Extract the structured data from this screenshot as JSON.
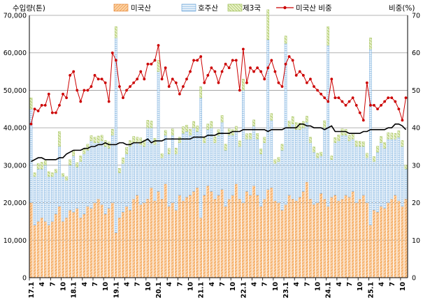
{
  "chart_data": {
    "type": "bar",
    "ylabel_left": "수입량(톤)",
    "ylabel_right": "비중(%)",
    "ylim_left": [
      0,
      70000
    ],
    "yticks_left": [
      "0",
      "10,000",
      "20,000",
      "30,000",
      "40,000",
      "50,000",
      "60,000",
      "70,000"
    ],
    "ylim_right": [
      0,
      70
    ],
    "yticks_right": [
      "0",
      "10",
      "20",
      "30",
      "40",
      "50",
      "60",
      "70"
    ],
    "gridlines": true,
    "legend_position": "top",
    "x_tick_labels": [
      {
        "i": 0,
        "t": "17.1"
      },
      {
        "i": 3,
        "t": "4"
      },
      {
        "i": 6,
        "t": "7"
      },
      {
        "i": 9,
        "t": "10"
      },
      {
        "i": 12,
        "t": "18.1"
      },
      {
        "i": 15,
        "t": "4"
      },
      {
        "i": 18,
        "t": "7"
      },
      {
        "i": 21,
        "t": "10"
      },
      {
        "i": 24,
        "t": "19.1"
      },
      {
        "i": 27,
        "t": "4"
      },
      {
        "i": 30,
        "t": "7"
      },
      {
        "i": 33,
        "t": "10"
      },
      {
        "i": 36,
        "t": "20.1"
      },
      {
        "i": 39,
        "t": "4"
      },
      {
        "i": 42,
        "t": "7"
      },
      {
        "i": 45,
        "t": "10"
      },
      {
        "i": 48,
        "t": "21.1"
      },
      {
        "i": 51,
        "t": "4"
      },
      {
        "i": 54,
        "t": "7"
      },
      {
        "i": 57,
        "t": "10"
      },
      {
        "i": 60,
        "t": "22.1"
      },
      {
        "i": 63,
        "t": "4"
      },
      {
        "i": 66,
        "t": "7"
      },
      {
        "i": 69,
        "t": "10"
      },
      {
        "i": 72,
        "t": "23.1"
      },
      {
        "i": 75,
        "t": "4"
      },
      {
        "i": 78,
        "t": "7"
      },
      {
        "i": 81,
        "t": "10"
      },
      {
        "i": 84,
        "t": "24.1"
      },
      {
        "i": 87,
        "t": "4"
      },
      {
        "i": 90,
        "t": "7"
      },
      {
        "i": 93,
        "t": "10"
      },
      {
        "i": 96,
        "t": "25.1"
      },
      {
        "i": 99,
        "t": "4"
      },
      {
        "i": 102,
        "t": "7"
      },
      {
        "i": 105,
        "t": "10"
      }
    ],
    "colors": {
      "us_fill": "#f4a460",
      "us_stroke": "#e07820",
      "au_fill": "#cfe3f3",
      "au_stroke": "#5b9bd5",
      "third_fill": "#d9e8a8",
      "third_stroke": "#8db33a",
      "share_line": "#cc0000",
      "trend_line": "#000000"
    },
    "series": [
      {
        "name": "미국산",
        "axis": "left",
        "kind": "stacked-bar",
        "values": [
          20000,
          14000,
          15000,
          16000,
          15000,
          14000,
          15000,
          17000,
          19000,
          15000,
          16000,
          18000,
          17500,
          18500,
          16000,
          17000,
          19000,
          18500,
          20000,
          21000,
          19500,
          17000,
          18500,
          20000,
          12000,
          16000,
          17500,
          19000,
          18000,
          21000,
          22000,
          19500,
          20000,
          21000,
          24000,
          20500,
          23000,
          21000,
          25000,
          19000,
          20000,
          18000,
          22000,
          20500,
          21500,
          22000,
          23000,
          24000,
          16000,
          22000,
          24500,
          23000,
          21000,
          22000,
          23500,
          19000,
          21000,
          22000,
          25000,
          21000,
          20000,
          23000,
          22000,
          24500,
          22000,
          19000,
          21000,
          23500,
          24000,
          20500,
          20000,
          18000,
          19500,
          22000,
          21000,
          20500,
          21500,
          23000,
          25500,
          21000,
          19500,
          20000,
          22500,
          21000,
          19000,
          21500,
          22000,
          20500,
          21000,
          22000,
          21500,
          23000,
          20000,
          21000,
          22000,
          20000,
          14000,
          18000,
          17500,
          19000,
          18500,
          20000,
          21000,
          22000,
          20500,
          19000,
          21000
        ],
        "approx": true
      },
      {
        "name": "호주산",
        "axis": "left",
        "kind": "stacked-bar",
        "values": [
          25000,
          13000,
          14000,
          13000,
          15000,
          13000,
          12000,
          11000,
          16000,
          12000,
          10000,
          12000,
          15000,
          11000,
          15000,
          16000,
          15000,
          18000,
          16000,
          15000,
          17000,
          18000,
          16000,
          18000,
          52000,
          12000,
          13000,
          14000,
          17000,
          15000,
          14000,
          16000,
          15000,
          19000,
          16000,
          15000,
          32000,
          11000,
          13000,
          14000,
          18000,
          15000,
          14000,
          18000,
          17500,
          16000,
          17000,
          15000,
          32000,
          14000,
          15000,
          17000,
          15000,
          16000,
          18000,
          15000,
          17000,
          16000,
          14000,
          14000,
          30000,
          14000,
          15000,
          16000,
          15000,
          14000,
          15000,
          40000,
          18000,
          10000,
          11000,
          16000,
          43000,
          18000,
          20000,
          19000,
          18000,
          17000,
          16000,
          15000,
          14000,
          12000,
          10000,
          19000,
          43000,
          10000,
          14000,
          16000,
          17000,
          16000,
          15000,
          14000,
          15000,
          14000,
          13000,
          12000,
          47000,
          13000,
          16000,
          17000,
          16000,
          17000,
          16000,
          15000,
          17000,
          16000,
          8000
        ],
        "approx": true
      },
      {
        "name": "제3국",
        "axis": "left",
        "kind": "stacked-bar",
        "values": [
          3000,
          1000,
          1500,
          1800,
          1200,
          1300,
          1000,
          900,
          4000,
          800,
          1000,
          1500,
          1500,
          1200,
          1500,
          1300,
          1600,
          1400,
          1500,
          1800,
          1500,
          1600,
          1700,
          1600,
          3000,
          1200,
          1500,
          1800,
          1600,
          1700,
          1500,
          1800,
          1700,
          2000,
          1800,
          1700,
          3000,
          1100,
          1300,
          1500,
          1700,
          1600,
          1500,
          1800,
          1700,
          1600,
          1700,
          1500,
          3000,
          1300,
          1500,
          1700,
          1600,
          1500,
          1800,
          1600,
          1700,
          1500,
          1400,
          1500,
          3000,
          1400,
          1500,
          1600,
          1500,
          1400,
          1500,
          8000,
          1800,
          1000,
          1100,
          1600,
          2000,
          1800,
          2000,
          1900,
          1800,
          1700,
          1600,
          1500,
          1400,
          1200,
          1000,
          1900,
          5000,
          1000,
          1400,
          1600,
          1700,
          1600,
          1500,
          1400,
          1500,
          1400,
          1300,
          1200,
          3000,
          1300,
          1600,
          1700,
          1600,
          1700,
          1600,
          1500,
          1700,
          1600,
          1000
        ],
        "approx": true
      },
      {
        "name": "미국산 비중",
        "axis": "right",
        "kind": "line-markers",
        "values": [
          41,
          45,
          44.5,
          46,
          46,
          49,
          44,
          44,
          46,
          49,
          48,
          54,
          55,
          50,
          47,
          50,
          50,
          51,
          54,
          53,
          53,
          52,
          47,
          60,
          58,
          51,
          48,
          50,
          51,
          52,
          53,
          55,
          53,
          57,
          57,
          58,
          62,
          53,
          56,
          51,
          53,
          52,
          49,
          51,
          53,
          55,
          58,
          58,
          59,
          52,
          54,
          56,
          55,
          52,
          55,
          57,
          56,
          58,
          58,
          50,
          61,
          52,
          56,
          55,
          56,
          55,
          53,
          56,
          58,
          55,
          52,
          51,
          57,
          59,
          58,
          54,
          55,
          54,
          52,
          53,
          51,
          50,
          49,
          48,
          47,
          53,
          48,
          48,
          47,
          46,
          47,
          48,
          46,
          44,
          42,
          52,
          46,
          46,
          45,
          46,
          47,
          48,
          48,
          47,
          45,
          42,
          48
        ],
        "approx": true
      },
      {
        "name": "",
        "axis": "right",
        "kind": "line",
        "values": [
          31,
          31.5,
          32,
          32,
          31.5,
          31.5,
          31.5,
          31.5,
          32,
          32,
          33,
          33.5,
          34,
          34,
          34,
          34.5,
          34.5,
          35,
          35,
          35.5,
          35.5,
          36,
          35.5,
          35.5,
          35.5,
          36,
          36,
          35.5,
          35.5,
          36,
          36,
          36,
          36.5,
          37,
          36,
          36.5,
          36.5,
          36.5,
          37,
          37,
          37,
          37,
          37,
          37,
          37,
          37,
          37.5,
          37.5,
          37.5,
          37.5,
          38,
          38,
          38,
          38.5,
          38.5,
          38.5,
          38.5,
          39,
          39,
          39,
          39.5,
          39.5,
          39.5,
          39.5,
          39.5,
          39.5,
          39.5,
          39,
          39.5,
          39.5,
          39.5,
          39.5,
          40,
          40,
          40,
          40,
          41,
          41,
          40.5,
          40.5,
          40,
          40,
          40,
          39.5,
          40,
          40.5,
          39,
          39,
          39,
          39,
          38.5,
          38.5,
          38.5,
          38.5,
          39,
          39,
          39.5,
          39.5,
          39.5,
          39.5,
          39.5,
          40,
          40,
          41,
          41,
          40.5,
          39.5
        ],
        "approx": true
      }
    ],
    "legend": [
      {
        "key": "us",
        "label": "미국산"
      },
      {
        "key": "au",
        "label": "호주산"
      },
      {
        "key": "third",
        "label": "제3국"
      },
      {
        "key": "share",
        "label": "미국산 비중"
      }
    ]
  }
}
